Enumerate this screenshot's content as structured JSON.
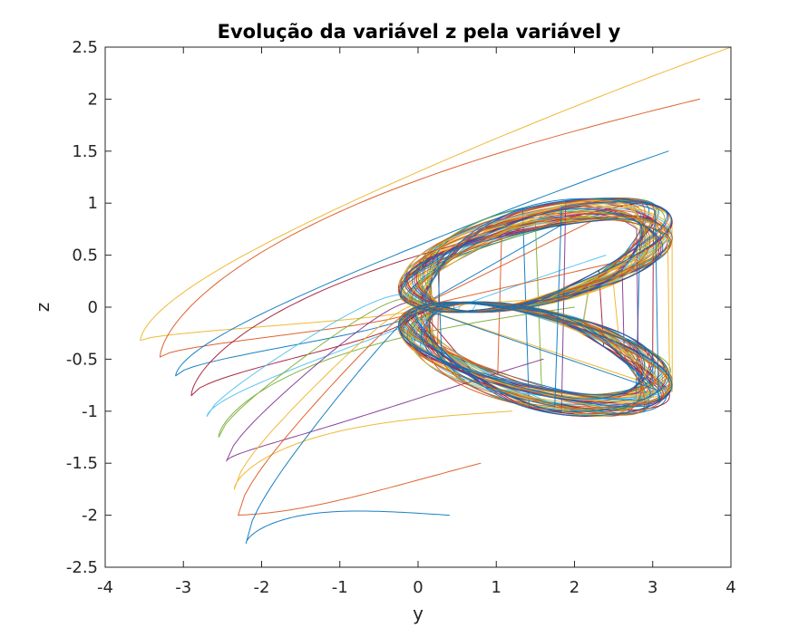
{
  "chart_data": {
    "type": "line",
    "title": "Evolução da variável z pela variável y",
    "xlabel": "y",
    "ylabel": "z",
    "xlim": [
      -4,
      4
    ],
    "ylim": [
      -2.5,
      2.5
    ],
    "x_ticks": [
      "-4",
      "-3",
      "-2",
      "-1",
      "0",
      "1",
      "2",
      "3",
      "4"
    ],
    "y_ticks": [
      "-2.5",
      "-2",
      "-1.5",
      "-1",
      "-0.5",
      "0",
      "0.5",
      "1",
      "1.5",
      "2",
      "2.5"
    ],
    "grid": false,
    "legend": "none",
    "series": [
      {
        "color": "#EDB120",
        "start": [
          4.0,
          2.5
        ],
        "excursion": [
          -3.55,
          -0.32
        ]
      },
      {
        "color": "#D95319",
        "start": [
          3.6,
          2.0
        ],
        "excursion": [
          -3.3,
          -0.48
        ]
      },
      {
        "color": "#0072BD",
        "start": [
          3.2,
          1.5
        ],
        "excursion": [
          -3.1,
          -0.66
        ]
      },
      {
        "color": "#A2142F",
        "start": [
          2.8,
          1.0
        ],
        "excursion": [
          -2.9,
          -0.85
        ]
      },
      {
        "color": "#4DBEEE",
        "start": [
          2.4,
          0.5
        ],
        "excursion": [
          -2.7,
          -1.05
        ]
      },
      {
        "color": "#77AC30",
        "start": [
          2.0,
          0.0
        ],
        "excursion": [
          -2.55,
          -1.25
        ]
      },
      {
        "color": "#7E2F8E",
        "start": [
          1.6,
          -0.5
        ],
        "excursion": [
          -2.45,
          -1.48
        ]
      },
      {
        "color": "#EDB120",
        "start": [
          1.2,
          -1.0
        ],
        "excursion": [
          -2.35,
          -1.75
        ]
      },
      {
        "color": "#D95319",
        "start": [
          0.8,
          -1.5
        ],
        "excursion": [
          -2.3,
          -2.0
        ]
      },
      {
        "color": "#0072BD",
        "start": [
          0.4,
          -2.0
        ],
        "excursion": [
          -2.2,
          -2.27
        ]
      }
    ],
    "attractor_range": {
      "y": [
        -0.3,
        3.3
      ],
      "z": [
        -1.1,
        1.15
      ]
    }
  }
}
